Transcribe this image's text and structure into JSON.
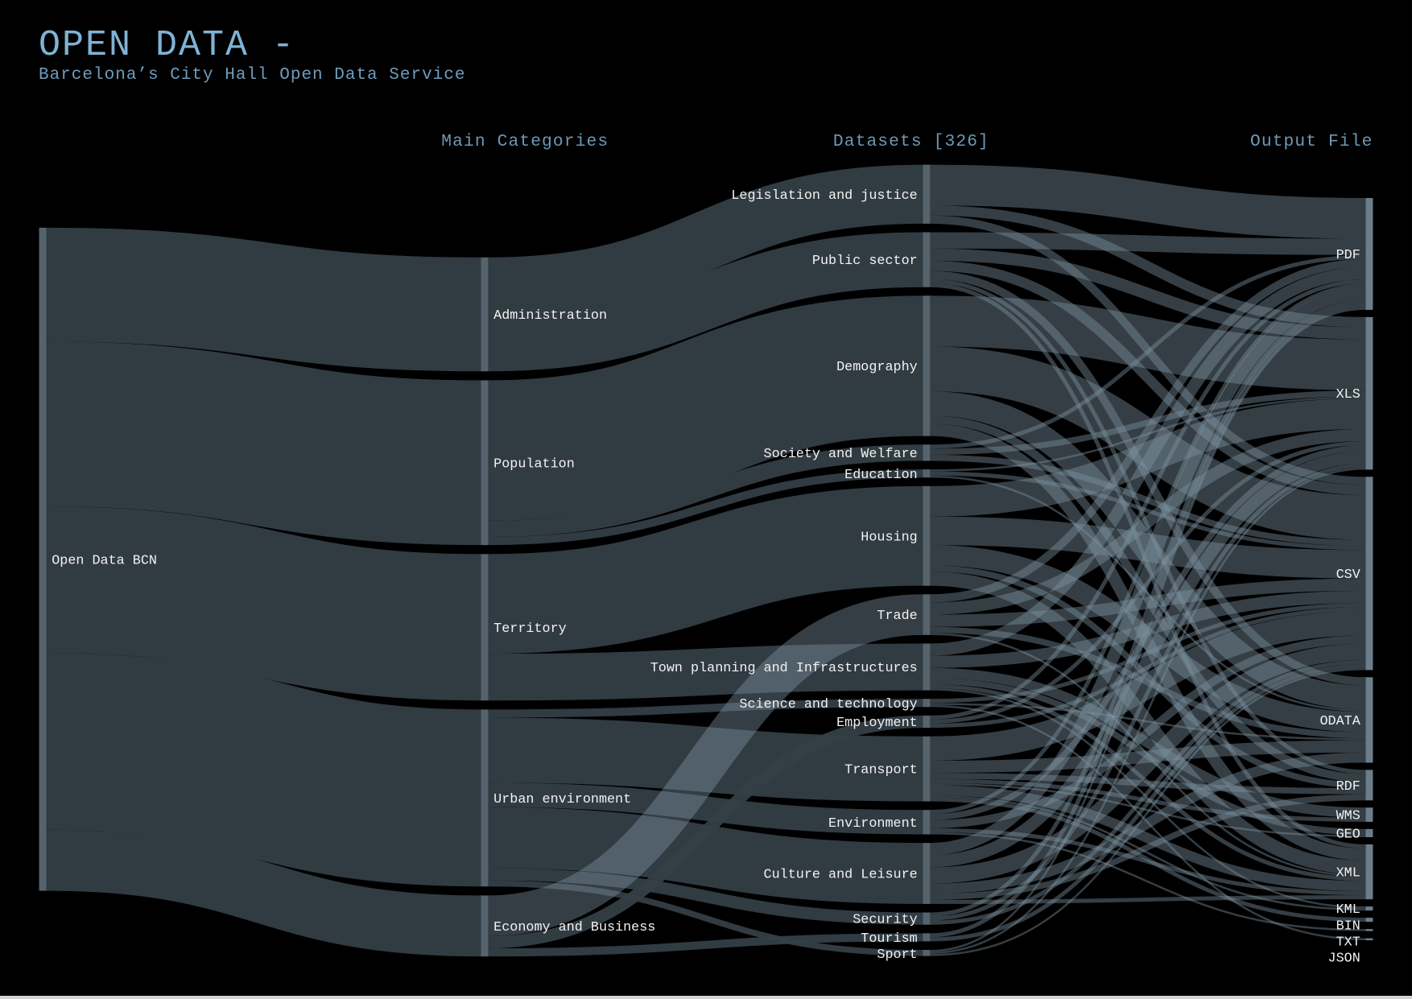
{
  "header": {
    "title": "OPEN DATA -",
    "subtitle": "Barcelona’s City Hall Open Data Service"
  },
  "chart_data": {
    "type": "sankey",
    "title": "OPEN DATA -",
    "subtitle": "Barcelona’s City Hall Open Data Service",
    "column_headers": [
      "",
      "Main Categories",
      "Datasets [326]",
      "Output File"
    ],
    "colors": {
      "background": "#000000",
      "node": "#55636d",
      "link": "#343e46",
      "link_cross": "#7f93a3",
      "title": "#7fb3d5",
      "header": "#6f98b5",
      "label": "#f2f2f2"
    },
    "nodes": [
      {
        "id": "Open Data BCN",
        "column": 0
      },
      {
        "id": "Administration",
        "column": 1
      },
      {
        "id": "Population",
        "column": 1
      },
      {
        "id": "Territory",
        "column": 1
      },
      {
        "id": "Urban environment",
        "column": 1
      },
      {
        "id": "Economy and Business",
        "column": 1
      },
      {
        "id": "Legislation and justice",
        "column": 2
      },
      {
        "id": "Public sector",
        "column": 2
      },
      {
        "id": "Demography",
        "column": 2
      },
      {
        "id": "Society and Welfare",
        "column": 2
      },
      {
        "id": "Education",
        "column": 2
      },
      {
        "id": "Housing",
        "column": 2
      },
      {
        "id": "Trade",
        "column": 2
      },
      {
        "id": "Town planning and Infrastructures",
        "column": 2
      },
      {
        "id": "Science and technology",
        "column": 2
      },
      {
        "id": "Employment",
        "column": 2
      },
      {
        "id": "Transport",
        "column": 2
      },
      {
        "id": "Environment",
        "column": 2
      },
      {
        "id": "Culture and Leisure",
        "column": 2
      },
      {
        "id": "Security",
        "column": 2
      },
      {
        "id": "Tourism",
        "column": 2
      },
      {
        "id": "Sport",
        "column": 2
      },
      {
        "id": "PDF",
        "column": 3
      },
      {
        "id": "XLS",
        "column": 3
      },
      {
        "id": "CSV",
        "column": 3
      },
      {
        "id": "ODATA",
        "column": 3
      },
      {
        "id": "RDF",
        "column": 3
      },
      {
        "id": "WMS",
        "column": 3
      },
      {
        "id": "GEO",
        "column": 3
      },
      {
        "id": "XML",
        "column": 3
      },
      {
        "id": "KML",
        "column": 3
      },
      {
        "id": "BIN",
        "column": 3
      },
      {
        "id": "TXT",
        "column": 3
      },
      {
        "id": "JSON",
        "column": 3
      }
    ],
    "links": [
      [
        "Open Data BCN",
        "Administration",
        56
      ],
      [
        "Open Data BCN",
        "Population",
        81
      ],
      [
        "Open Data BCN",
        "Territory",
        72
      ],
      [
        "Open Data BCN",
        "Urban environment",
        87
      ],
      [
        "Open Data BCN",
        "Economy and Business",
        30
      ],
      [
        "Administration",
        "Legislation and justice",
        29
      ],
      [
        "Administration",
        "Public sector",
        27
      ],
      [
        "Population",
        "Demography",
        69
      ],
      [
        "Population",
        "Society and Welfare",
        8
      ],
      [
        "Population",
        "Education",
        4
      ],
      [
        "Territory",
        "Housing",
        49
      ],
      [
        "Territory",
        "Town planning and Infrastructures",
        23
      ],
      [
        "Urban environment",
        "Science and technology",
        4
      ],
      [
        "Urban environment",
        "Transport",
        32
      ],
      [
        "Urban environment",
        "Environment",
        12
      ],
      [
        "Urban environment",
        "Culture and Leisure",
        30
      ],
      [
        "Urban environment",
        "Security",
        6
      ],
      [
        "Urban environment",
        "Sport",
        3
      ],
      [
        "Economy and Business",
        "Trade",
        20
      ],
      [
        "Economy and Business",
        "Employment",
        6
      ],
      [
        "Economy and Business",
        "Tourism",
        4
      ],
      [
        "Legislation and justice",
        "PDF",
        20
      ],
      [
        "Legislation and justice",
        "XLS",
        5
      ],
      [
        "Legislation and justice",
        "CSV",
        4
      ],
      [
        "Public sector",
        "PDF",
        8
      ],
      [
        "Public sector",
        "XLS",
        6
      ],
      [
        "Public sector",
        "CSV",
        5
      ],
      [
        "Public sector",
        "ODATA",
        4
      ],
      [
        "Public sector",
        "RDF",
        2
      ],
      [
        "Public sector",
        "XML",
        2
      ],
      [
        "Demography",
        "XLS",
        25
      ],
      [
        "Demography",
        "CSV",
        22
      ],
      [
        "Demography",
        "ODATA",
        12
      ],
      [
        "Demography",
        "RDF",
        4
      ],
      [
        "Demography",
        "XML",
        6
      ],
      [
        "Society and Welfare",
        "PDF",
        2
      ],
      [
        "Society and Welfare",
        "XLS",
        3
      ],
      [
        "Society and Welfare",
        "CSV",
        3
      ],
      [
        "Education",
        "XLS",
        1
      ],
      [
        "Education",
        "CSV",
        2
      ],
      [
        "Education",
        "ODATA",
        1
      ],
      [
        "Housing",
        "XLS",
        15
      ],
      [
        "Housing",
        "CSV",
        14
      ],
      [
        "Housing",
        "ODATA",
        10
      ],
      [
        "Housing",
        "RDF",
        3
      ],
      [
        "Housing",
        "XML",
        7
      ],
      [
        "Trade",
        "PDF",
        4
      ],
      [
        "Trade",
        "XLS",
        6
      ],
      [
        "Trade",
        "CSV",
        6
      ],
      [
        "Trade",
        "ODATA",
        3
      ],
      [
        "Trade",
        "XML",
        1
      ],
      [
        "Town planning and Infrastructures",
        "PDF",
        6
      ],
      [
        "Town planning and Infrastructures",
        "CSV",
        6
      ],
      [
        "Town planning and Infrastructures",
        "WMS",
        5
      ],
      [
        "Town planning and Infrastructures",
        "GEO",
        3
      ],
      [
        "Town planning and Infrastructures",
        "XML",
        2
      ],
      [
        "Town planning and Infrastructures",
        "KML",
        1
      ],
      [
        "Science and technology",
        "CSV",
        2
      ],
      [
        "Science and technology",
        "ODATA",
        1
      ],
      [
        "Science and technology",
        "JSON",
        1
      ],
      [
        "Employment",
        "PDF",
        2
      ],
      [
        "Employment",
        "XLS",
        2
      ],
      [
        "Employment",
        "CSV",
        2
      ],
      [
        "Transport",
        "CSV",
        12
      ],
      [
        "Transport",
        "ODATA",
        6
      ],
      [
        "Transport",
        "RDF",
        3
      ],
      [
        "Transport",
        "WMS",
        2
      ],
      [
        "Transport",
        "GEO",
        1
      ],
      [
        "Transport",
        "XML",
        5
      ],
      [
        "Transport",
        "KML",
        1
      ],
      [
        "Transport",
        "BIN",
        2
      ],
      [
        "Environment",
        "PDF",
        2
      ],
      [
        "Environment",
        "XLS",
        3
      ],
      [
        "Environment",
        "CSV",
        4
      ],
      [
        "Environment",
        "XML",
        2
      ],
      [
        "Environment",
        "TXT",
        1
      ],
      [
        "Culture and Leisure",
        "PDF",
        6
      ],
      [
        "Culture and Leisure",
        "XLS",
        6
      ],
      [
        "Culture and Leisure",
        "CSV",
        8
      ],
      [
        "Culture and Leisure",
        "ODATA",
        5
      ],
      [
        "Culture and Leisure",
        "RDF",
        3
      ],
      [
        "Culture and Leisure",
        "XML",
        2
      ],
      [
        "Security",
        "PDF",
        2
      ],
      [
        "Security",
        "XLS",
        2
      ],
      [
        "Security",
        "CSV",
        2
      ],
      [
        "Tourism",
        "PDF",
        2
      ],
      [
        "Tourism",
        "CSV",
        2
      ],
      [
        "Sport",
        "PDF",
        1
      ],
      [
        "Sport",
        "XLS",
        1
      ],
      [
        "Sport",
        "CSV",
        1
      ]
    ]
  }
}
